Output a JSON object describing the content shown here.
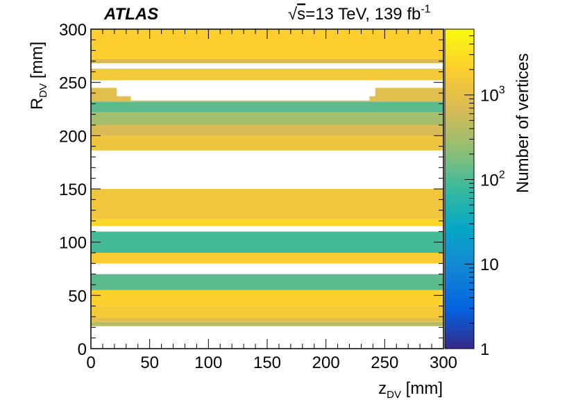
{
  "chart_data": {
    "type": "heatmap",
    "title": "",
    "experiment_label": "ATLAS",
    "energy_label": {
      "sqrt_symbol": "√",
      "s": "s",
      "text": "=13 TeV, 139 fb",
      "superscript": "-1"
    },
    "xlabel": {
      "main": "z",
      "sub": "DV",
      "unit": " [mm]"
    },
    "ylabel": {
      "main": "R",
      "sub": "DV",
      "unit": " [mm]"
    },
    "xlim": [
      0,
      300
    ],
    "ylim": [
      0,
      300
    ],
    "x_ticks": [
      0,
      50,
      100,
      150,
      200,
      250,
      300
    ],
    "x_tick_labels": [
      "0",
      "50",
      "100",
      "150",
      "200",
      "250",
      "300"
    ],
    "y_ticks": [
      0,
      50,
      100,
      150,
      200,
      250,
      300
    ],
    "y_tick_labels": [
      "0",
      "50",
      "100",
      "150",
      "200",
      "250",
      "300"
    ],
    "colorbar": {
      "label": "Number of vertices",
      "scale": "log",
      "range": [
        1,
        6000
      ],
      "ticks": [
        {
          "value": 1,
          "base": "1",
          "exp": ""
        },
        {
          "value": 10,
          "base": "10",
          "exp": ""
        },
        {
          "value": 100,
          "base": "10",
          "exp": "2"
        },
        {
          "value": 1000,
          "base": "10",
          "exp": "3"
        }
      ],
      "palette": [
        "#352a87",
        "#0363e1",
        "#1485d4",
        "#06a7c6",
        "#38b99e",
        "#92bf73",
        "#d9ba56",
        "#fcce2e",
        "#f9fb0e"
      ]
    },
    "regions": [
      {
        "r": [
          21,
          25
        ],
        "z": [
          0,
          300
        ],
        "value": 400
      },
      {
        "r": [
          25,
          29
        ],
        "z": [
          0,
          300
        ],
        "value": 900
      },
      {
        "r": [
          29,
          40
        ],
        "z": [
          0,
          300
        ],
        "value": 1600
      },
      {
        "r": [
          40,
          55
        ],
        "z": [
          0,
          300
        ],
        "value": 2200
      },
      {
        "r": [
          55,
          70
        ],
        "z": [
          0,
          300
        ],
        "value": 120
      },
      {
        "r": [
          80,
          90
        ],
        "z": [
          0,
          300
        ],
        "value": 1800
      },
      {
        "r": [
          90,
          110
        ],
        "z": [
          0,
          300
        ],
        "value": 90
      },
      {
        "r": [
          115,
          122
        ],
        "z": [
          0,
          300
        ],
        "value": 2500
      },
      {
        "r": [
          122,
          150
        ],
        "z": [
          0,
          300
        ],
        "value": 1400
      },
      {
        "r": [
          186,
          200
        ],
        "z": [
          0,
          300
        ],
        "value": 1300
      },
      {
        "r": [
          200,
          210
        ],
        "z": [
          0,
          300
        ],
        "value": 700
      },
      {
        "r": [
          210,
          222
        ],
        "z": [
          0,
          300
        ],
        "value": 300
      },
      {
        "r": [
          222,
          232
        ],
        "z": [
          0,
          300
        ],
        "value": 120
      },
      {
        "r": [
          232,
          245
        ],
        "z": [
          0,
          300
        ],
        "value": 900
      },
      {
        "r": [
          252,
          263
        ],
        "z": [
          0,
          300
        ],
        "value": 1500
      },
      {
        "r": [
          268,
          272
        ],
        "z": [
          0,
          300
        ],
        "value": 700
      },
      {
        "r": [
          272,
          300
        ],
        "z": [
          0,
          300
        ],
        "value": 2000
      }
    ],
    "empty_regions": [
      {
        "r": [
          0,
          21
        ],
        "z": [
          0,
          300
        ]
      },
      {
        "r": [
          70,
          74
        ],
        "z": [
          0,
          300
        ]
      },
      {
        "r": [
          110,
          115
        ],
        "z": [
          0,
          300
        ]
      },
      {
        "r": [
          150,
          186
        ],
        "z": [
          0,
          300
        ]
      },
      {
        "r": [
          245,
          252
        ],
        "z": [
          0,
          300
        ]
      },
      {
        "r": [
          263,
          268
        ],
        "z": [
          0,
          300
        ]
      },
      {
        "r": [
          237,
          245
        ],
        "z": [
          22,
          242
        ]
      },
      {
        "r": [
          233,
          237
        ],
        "z": [
          34,
          237
        ]
      }
    ]
  }
}
